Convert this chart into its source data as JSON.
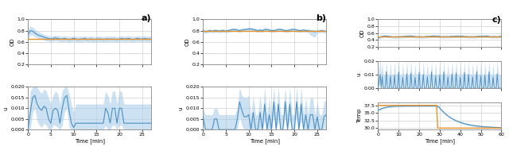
{
  "fig_width": 6.4,
  "fig_height": 2.04,
  "dpi": 100,
  "panel_a": {
    "label": "a)",
    "x_max": 27,
    "x_ticks": [
      0,
      5,
      10,
      15,
      20,
      25
    ],
    "od_ylim": [
      0.2,
      1.0
    ],
    "od_yticks": [
      0.2,
      0.4,
      0.6,
      0.8,
      1.0
    ],
    "od_setpoint": 0.65,
    "od_x": [
      0,
      0.5,
      1,
      1.5,
      2,
      2.5,
      3,
      3.5,
      4,
      4.5,
      5,
      5.5,
      6,
      6.5,
      7,
      7.5,
      8,
      8.5,
      9,
      9.5,
      10,
      10.5,
      11,
      11.5,
      12,
      12.5,
      13,
      13.5,
      14,
      14.5,
      15,
      15.5,
      16,
      16.5,
      17,
      17.5,
      18,
      18.5,
      19,
      19.5,
      20,
      20.5,
      21,
      21.5,
      22,
      22.5,
      23,
      23.5,
      24,
      24.5,
      25,
      25.5,
      26,
      26.5,
      27
    ],
    "od_mean": [
      0.73,
      0.8,
      0.79,
      0.76,
      0.73,
      0.71,
      0.7,
      0.68,
      0.67,
      0.66,
      0.65,
      0.66,
      0.67,
      0.66,
      0.65,
      0.65,
      0.66,
      0.65,
      0.64,
      0.65,
      0.66,
      0.65,
      0.64,
      0.65,
      0.65,
      0.66,
      0.64,
      0.65,
      0.65,
      0.64,
      0.65,
      0.65,
      0.65,
      0.64,
      0.65,
      0.65,
      0.65,
      0.65,
      0.65,
      0.64,
      0.65,
      0.66,
      0.65,
      0.65,
      0.66,
      0.65,
      0.64,
      0.65,
      0.66,
      0.65,
      0.65,
      0.66,
      0.65,
      0.65,
      0.65
    ],
    "od_upper": [
      0.82,
      0.88,
      0.86,
      0.83,
      0.79,
      0.77,
      0.75,
      0.73,
      0.72,
      0.71,
      0.7,
      0.71,
      0.72,
      0.71,
      0.7,
      0.7,
      0.71,
      0.7,
      0.69,
      0.7,
      0.71,
      0.7,
      0.69,
      0.7,
      0.7,
      0.71,
      0.69,
      0.7,
      0.7,
      0.69,
      0.7,
      0.7,
      0.7,
      0.69,
      0.7,
      0.7,
      0.7,
      0.7,
      0.7,
      0.69,
      0.7,
      0.71,
      0.7,
      0.7,
      0.71,
      0.7,
      0.69,
      0.7,
      0.71,
      0.7,
      0.7,
      0.71,
      0.7,
      0.7,
      0.7
    ],
    "od_lower": [
      0.64,
      0.72,
      0.72,
      0.69,
      0.67,
      0.65,
      0.65,
      0.63,
      0.62,
      0.61,
      0.6,
      0.61,
      0.62,
      0.61,
      0.6,
      0.6,
      0.61,
      0.6,
      0.59,
      0.6,
      0.61,
      0.6,
      0.59,
      0.6,
      0.6,
      0.61,
      0.59,
      0.6,
      0.6,
      0.59,
      0.6,
      0.6,
      0.6,
      0.59,
      0.6,
      0.6,
      0.6,
      0.6,
      0.6,
      0.59,
      0.6,
      0.61,
      0.6,
      0.6,
      0.61,
      0.6,
      0.59,
      0.6,
      0.61,
      0.6,
      0.6,
      0.61,
      0.6,
      0.6,
      0.6
    ],
    "u_ylim": [
      0,
      0.02
    ],
    "u_yticks": [
      0.0,
      0.005,
      0.01,
      0.015,
      0.02
    ],
    "u_x": [
      0,
      0.5,
      1,
      1.5,
      2,
      2.5,
      3,
      3.5,
      4,
      4.5,
      5,
      5.5,
      6,
      6.5,
      7,
      7.5,
      8,
      8.5,
      9,
      9.5,
      10,
      10.5,
      11,
      11.5,
      12,
      12.5,
      13,
      13.5,
      14,
      14.5,
      15,
      15.5,
      16,
      16.5,
      17,
      17.5,
      18,
      18.5,
      19,
      19.5,
      20,
      20.5,
      21,
      21.5,
      22,
      22.5,
      23,
      23.5,
      24,
      24.5,
      25,
      25.5,
      26,
      26.5,
      27
    ],
    "u_mean": [
      0.0,
      0.008,
      0.015,
      0.016,
      0.012,
      0.01,
      0.009,
      0.011,
      0.01,
      0.005,
      0.003,
      0.009,
      0.01,
      0.009,
      0.003,
      0.01,
      0.015,
      0.016,
      0.009,
      0.003,
      0.001,
      0.003,
      0.003,
      0.003,
      0.003,
      0.003,
      0.003,
      0.003,
      0.003,
      0.003,
      0.003,
      0.003,
      0.003,
      0.003,
      0.01,
      0.008,
      0.003,
      0.01,
      0.01,
      0.003,
      0.01,
      0.01,
      0.003,
      0.003,
      0.003,
      0.003,
      0.003,
      0.003,
      0.003,
      0.003,
      0.003,
      0.003,
      0.003,
      0.003,
      0.003
    ],
    "u_upper": [
      0.005,
      0.018,
      0.02,
      0.02,
      0.02,
      0.018,
      0.017,
      0.019,
      0.018,
      0.015,
      0.012,
      0.016,
      0.018,
      0.017,
      0.012,
      0.018,
      0.02,
      0.02,
      0.017,
      0.012,
      0.008,
      0.012,
      0.012,
      0.012,
      0.012,
      0.012,
      0.012,
      0.012,
      0.012,
      0.012,
      0.012,
      0.012,
      0.012,
      0.012,
      0.018,
      0.016,
      0.012,
      0.018,
      0.018,
      0.012,
      0.018,
      0.018,
      0.012,
      0.012,
      0.012,
      0.012,
      0.012,
      0.012,
      0.012,
      0.012,
      0.012,
      0.012,
      0.012,
      0.012,
      0.012
    ],
    "u_lower": [
      0.0,
      0.0,
      0.008,
      0.01,
      0.004,
      0.002,
      0.001,
      0.003,
      0.002,
      0.0,
      0.0,
      0.002,
      0.002,
      0.001,
      0.0,
      0.002,
      0.008,
      0.01,
      0.001,
      0.0,
      0.0,
      0.0,
      0.0,
      0.0,
      0.0,
      0.0,
      0.0,
      0.0,
      0.0,
      0.0,
      0.0,
      0.0,
      0.0,
      0.0,
      0.002,
      0.0,
      0.0,
      0.002,
      0.002,
      0.0,
      0.002,
      0.002,
      0.0,
      0.0,
      0.0,
      0.0,
      0.0,
      0.0,
      0.0,
      0.0,
      0.0,
      0.0,
      0.0,
      0.0,
      0.0
    ]
  },
  "panel_b": {
    "label": "b)",
    "x_max": 27,
    "x_ticks": [
      0,
      5,
      10,
      15,
      20,
      25
    ],
    "od_ylim": [
      0.2,
      1.0
    ],
    "od_yticks": [
      0.2,
      0.4,
      0.6,
      0.8,
      1.0
    ],
    "od_setpoint": 0.8,
    "od_x": [
      0,
      0.5,
      1,
      1.5,
      2,
      2.5,
      3,
      3.5,
      4,
      4.5,
      5,
      5.5,
      6,
      6.5,
      7,
      7.5,
      8,
      8.5,
      9,
      9.5,
      10,
      10.5,
      11,
      11.5,
      12,
      12.5,
      13,
      13.5,
      14,
      14.5,
      15,
      15.5,
      16,
      16.5,
      17,
      17.5,
      18,
      18.5,
      19,
      19.5,
      20,
      20.5,
      21,
      21.5,
      22,
      22.5,
      23,
      23.5,
      24,
      24.5,
      25,
      25.5,
      26,
      26.5,
      27
    ],
    "od_mean": [
      0.8,
      0.78,
      0.79,
      0.8,
      0.79,
      0.8,
      0.8,
      0.79,
      0.8,
      0.8,
      0.79,
      0.8,
      0.81,
      0.82,
      0.82,
      0.81,
      0.8,
      0.81,
      0.82,
      0.82,
      0.83,
      0.83,
      0.82,
      0.81,
      0.8,
      0.81,
      0.8,
      0.82,
      0.82,
      0.81,
      0.8,
      0.8,
      0.81,
      0.82,
      0.82,
      0.81,
      0.8,
      0.8,
      0.81,
      0.82,
      0.82,
      0.81,
      0.8,
      0.8,
      0.81,
      0.8,
      0.8,
      0.79,
      0.79,
      0.78,
      0.79,
      0.79,
      0.8,
      0.79,
      0.79
    ],
    "od_upper": [
      0.83,
      0.81,
      0.82,
      0.83,
      0.82,
      0.83,
      0.83,
      0.82,
      0.83,
      0.83,
      0.82,
      0.83,
      0.84,
      0.85,
      0.85,
      0.84,
      0.83,
      0.84,
      0.85,
      0.85,
      0.86,
      0.86,
      0.85,
      0.84,
      0.83,
      0.84,
      0.83,
      0.85,
      0.85,
      0.84,
      0.83,
      0.83,
      0.84,
      0.85,
      0.85,
      0.84,
      0.83,
      0.83,
      0.84,
      0.85,
      0.85,
      0.84,
      0.83,
      0.83,
      0.84,
      0.83,
      0.83,
      0.82,
      0.82,
      0.81,
      0.82,
      0.82,
      0.83,
      0.82,
      0.82
    ],
    "od_lower": [
      0.77,
      0.75,
      0.76,
      0.77,
      0.76,
      0.77,
      0.77,
      0.76,
      0.77,
      0.77,
      0.76,
      0.77,
      0.78,
      0.79,
      0.79,
      0.78,
      0.77,
      0.78,
      0.79,
      0.79,
      0.8,
      0.8,
      0.79,
      0.78,
      0.77,
      0.78,
      0.77,
      0.79,
      0.79,
      0.78,
      0.77,
      0.77,
      0.78,
      0.79,
      0.79,
      0.78,
      0.77,
      0.77,
      0.78,
      0.79,
      0.79,
      0.78,
      0.77,
      0.77,
      0.78,
      0.77,
      0.77,
      0.72,
      0.7,
      0.68,
      0.76,
      0.76,
      0.77,
      0.76,
      0.76
    ],
    "u_ylim": [
      0,
      0.02
    ],
    "u_yticks": [
      0.0,
      0.005,
      0.01,
      0.015,
      0.02
    ],
    "u_x": [
      0,
      0.5,
      1,
      1.5,
      2,
      2.5,
      3,
      3.5,
      4,
      4.5,
      5,
      5.5,
      6,
      6.5,
      7,
      7.5,
      8,
      8.5,
      9,
      9.5,
      10,
      10.5,
      11,
      11.5,
      12,
      12.5,
      13,
      13.5,
      14,
      14.5,
      15,
      15.5,
      16,
      16.5,
      17,
      17.5,
      18,
      18.5,
      19,
      19.5,
      20,
      20.5,
      21,
      21.5,
      22,
      22.5,
      23,
      23.5,
      24,
      24.5,
      25,
      25.5,
      26,
      26.5,
      27
    ],
    "u_mean": [
      0.006,
      0.0,
      0.0,
      0.0,
      0.0,
      0.005,
      0.005,
      0.0,
      0.0,
      0.0,
      0.0,
      0.0,
      0.0,
      0.0,
      0.0,
      0.005,
      0.013,
      0.009,
      0.006,
      0.006,
      0.007,
      0.0,
      0.008,
      0.0,
      0.0,
      0.008,
      0.0,
      0.012,
      0.0,
      0.007,
      0.0,
      0.013,
      0.0,
      0.012,
      0.0,
      0.0,
      0.013,
      0.0,
      0.012,
      0.0,
      0.0,
      0.013,
      0.0,
      0.012,
      0.0,
      0.007,
      0.0,
      0.007,
      0.007,
      0.0,
      0.006,
      0.0,
      0.0,
      0.006,
      0.007
    ],
    "u_upper": [
      0.01,
      0.007,
      0.007,
      0.007,
      0.007,
      0.01,
      0.01,
      0.007,
      0.007,
      0.007,
      0.007,
      0.007,
      0.007,
      0.007,
      0.007,
      0.01,
      0.02,
      0.016,
      0.015,
      0.015,
      0.016,
      0.007,
      0.016,
      0.007,
      0.007,
      0.016,
      0.007,
      0.02,
      0.007,
      0.015,
      0.007,
      0.02,
      0.007,
      0.02,
      0.007,
      0.007,
      0.02,
      0.007,
      0.02,
      0.007,
      0.007,
      0.02,
      0.007,
      0.02,
      0.007,
      0.015,
      0.007,
      0.015,
      0.015,
      0.007,
      0.013,
      0.007,
      0.007,
      0.013,
      0.014
    ],
    "u_lower": [
      0.002,
      0.0,
      0.0,
      0.0,
      0.0,
      0.0,
      0.0,
      0.0,
      0.0,
      0.0,
      0.0,
      0.0,
      0.0,
      0.0,
      0.0,
      0.0,
      0.006,
      0.002,
      0.0,
      0.0,
      0.0,
      0.0,
      0.0,
      0.0,
      0.0,
      0.0,
      0.0,
      0.004,
      0.0,
      0.0,
      0.0,
      0.006,
      0.0,
      0.004,
      0.0,
      0.0,
      0.006,
      0.0,
      0.004,
      0.0,
      0.0,
      0.006,
      0.0,
      0.004,
      0.0,
      0.0,
      0.0,
      0.0,
      0.0,
      0.0,
      0.0,
      0.0,
      0.0,
      0.0,
      0.0
    ]
  },
  "panel_c": {
    "label": "c)",
    "x_max": 60,
    "x_ticks": [
      0,
      10,
      20,
      30,
      40,
      50,
      60
    ],
    "od_ylim": [
      0.2,
      1.0
    ],
    "od_yticks": [
      0.2,
      0.4,
      0.6,
      0.8,
      1.0
    ],
    "od_setpoint": 0.5,
    "u_ylim": [
      0,
      0.02
    ],
    "u_yticks": [
      0.0,
      0.01,
      0.02
    ],
    "temp_ylim": [
      29.5,
      38.5
    ],
    "temp_yticks": [
      30.0,
      32.5,
      35.0,
      37.5
    ]
  },
  "line_color": "#4a90c4",
  "fill_color": "#aacde8",
  "setpoint_color": "#e8922a",
  "grid_color": "#d0d0d0",
  "bg_color": "#ffffff",
  "od_ylabel": "OD",
  "u_ylabel": "u",
  "temp_ylabel": "Temp",
  "xlabel": "Time [min]"
}
